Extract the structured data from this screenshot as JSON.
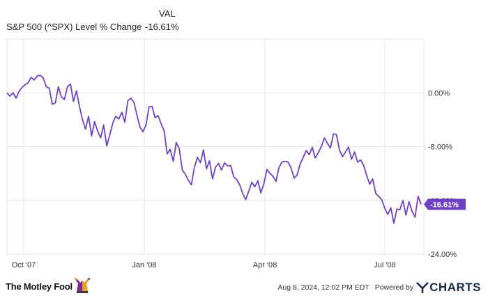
{
  "header": {
    "col_label": "VAL",
    "series_label": "S&P 500 (^SPX) Level % Change",
    "series_value": "-16.61%"
  },
  "chart_data": {
    "type": "line",
    "title": "",
    "xlabel": "",
    "ylabel": "",
    "x_ticks": [
      "Oct '07",
      "Jan '08",
      "Apr '08",
      "Jul '08"
    ],
    "y_ticks": [
      "0.00%",
      "-8.00%",
      "-16.00%",
      "-24.00%"
    ],
    "ylim": [
      -24,
      8
    ],
    "grid": true,
    "line_color": "#6f42c1",
    "series": [
      {
        "name": "S&P 500 (^SPX) Level % Change",
        "values": [
          0.0,
          -0.5,
          0.0,
          -0.8,
          0.2,
          0.8,
          1.2,
          1.5,
          2.3,
          1.9,
          2.5,
          2.6,
          2.2,
          0.9,
          0.7,
          -1.7,
          -1.5,
          0.9,
          -0.6,
          -1.0,
          0.9,
          1.3,
          -1.3,
          0.3,
          -2.1,
          -4.0,
          -5.4,
          -3.5,
          -6.4,
          -4.3,
          -5.7,
          -6.7,
          -4.8,
          -7.9,
          -6.3,
          -4.5,
          -3.5,
          -3.9,
          -2.9,
          -4.4,
          -1.2,
          -0.8,
          -1.4,
          -3.3,
          -5.1,
          -5.8,
          -4.8,
          -2.1,
          -2.0,
          -3.7,
          -3.4,
          -4.6,
          -5.7,
          -9.1,
          -8.4,
          -10.2,
          -7.4,
          -8.3,
          -11.5,
          -12.1,
          -13.0,
          -13.7,
          -11.1,
          -9.6,
          -10.4,
          -8.5,
          -11.3,
          -10.1,
          -12.8,
          -11.1,
          -10.5,
          -11.5,
          -10.4,
          -10.9,
          -10.8,
          -12.5,
          -12.9,
          -13.7,
          -15.0,
          -15.9,
          -14.6,
          -13.3,
          -14.0,
          -13.1,
          -14.9,
          -13.5,
          -11.4,
          -12.0,
          -12.4,
          -13.2,
          -11.1,
          -10.3,
          -10.2,
          -10.3,
          -11.2,
          -12.7,
          -12.2,
          -10.6,
          -9.6,
          -8.6,
          -9.2,
          -8.1,
          -9.7,
          -8.9,
          -8.0,
          -6.7,
          -7.5,
          -8.2,
          -6.1,
          -6.2,
          -8.5,
          -9.5,
          -8.8,
          -8.1,
          -9.9,
          -8.8,
          -10.3,
          -10.0,
          -10.8,
          -12.3,
          -13.6,
          -12.8,
          -15.0,
          -15.4,
          -15.9,
          -17.2,
          -18.1,
          -17.1,
          -19.4,
          -17.3,
          -17.4,
          -16.0,
          -18.2,
          -16.2,
          -17.6,
          -18.5,
          -15.4,
          -16.6
        ]
      }
    ]
  },
  "footer": {
    "brand": "The Motley Fool",
    "timestamp": "Aug 8, 2024, 12:02 PM EDT",
    "powered_by": "Powered by",
    "ycharts_label": "CHARTS"
  }
}
